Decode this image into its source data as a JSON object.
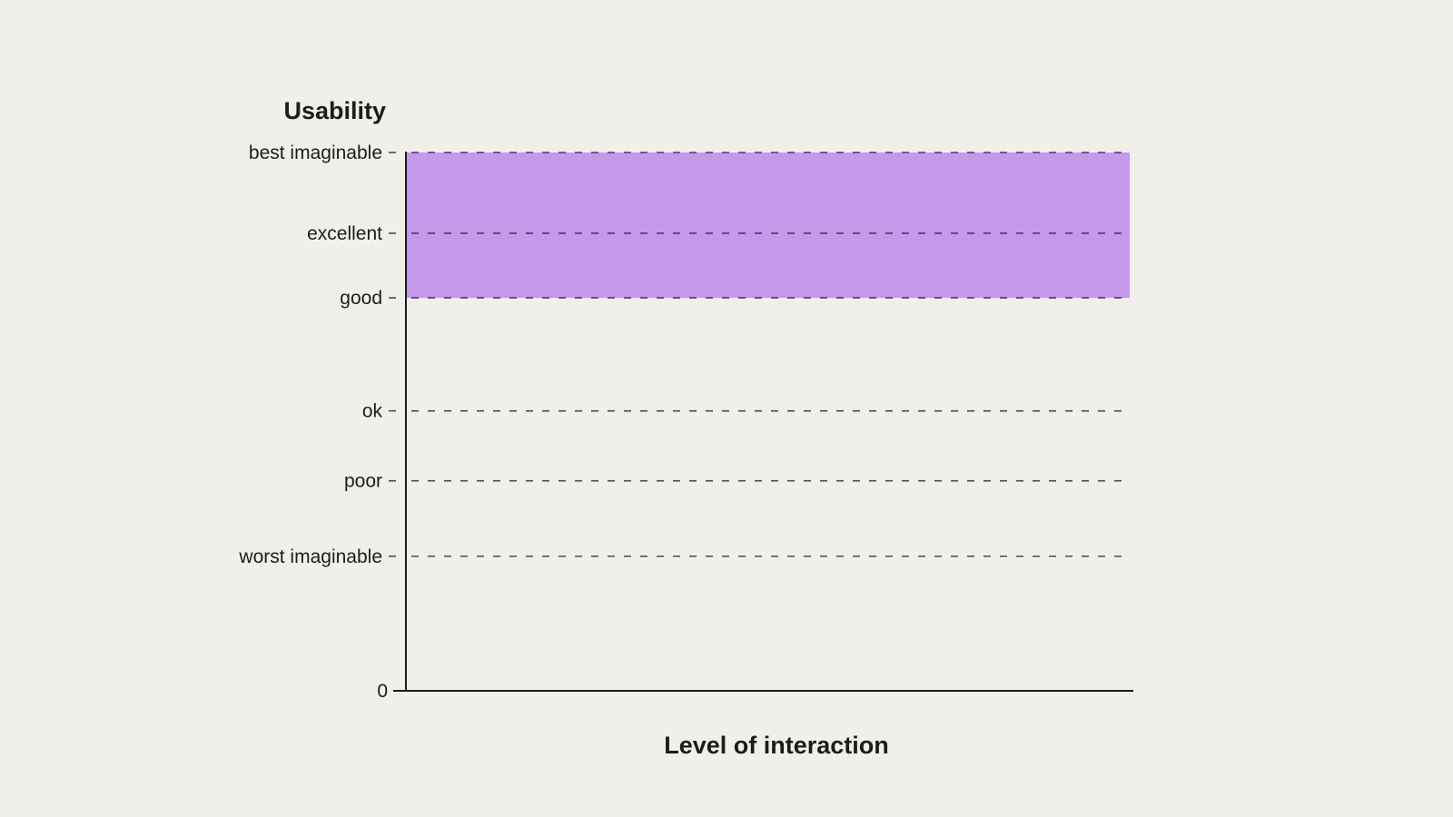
{
  "chart_data": {
    "type": "area",
    "title": "",
    "xlabel": "Level of interaction",
    "ylabel": "Usability",
    "ylim": [
      0,
      100
    ],
    "y_ticks": [
      {
        "label": "0",
        "value": 0,
        "gridline": false
      },
      {
        "label": "worst imaginable",
        "value": 25,
        "gridline": true
      },
      {
        "label": "poor",
        "value": 39,
        "gridline": true
      },
      {
        "label": "ok",
        "value": 52,
        "gridline": true
      },
      {
        "label": "good",
        "value": 73,
        "gridline": true
      },
      {
        "label": "excellent",
        "value": 85,
        "gridline": true
      },
      {
        "label": "best imaginable",
        "value": 100,
        "gridline": true
      }
    ],
    "bands": [
      {
        "from": 73,
        "to": 100,
        "color": "#c598e9"
      }
    ],
    "grid": true,
    "legend": "none"
  },
  "colors": {
    "background": "#f0efea",
    "band": "#c598e9",
    "band_edge": "#7a3fa8",
    "text": "#1c1c1c"
  }
}
